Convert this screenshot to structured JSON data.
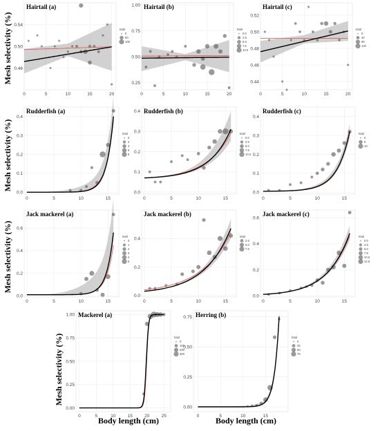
{
  "figure": {
    "ylabel": "Mesh selectivity (%)",
    "xlabel": "Body length (cm)"
  },
  "chart_data": [
    {
      "type": "scatter",
      "title": "Hairtail (a)",
      "xlim": [
        0,
        21
      ],
      "ylim": [
        0.42,
        0.58
      ],
      "xticks": [
        0,
        5,
        10,
        15,
        20
      ],
      "yticks": [
        0.46,
        0.5,
        0.54
      ],
      "legend_title": "total",
      "legend_entries": [
        "0",
        "50",
        "100"
      ],
      "legend_max": 100,
      "points": [
        [
          1,
          0.51,
          3
        ],
        [
          3,
          0.52,
          3
        ],
        [
          4,
          0.5,
          4
        ],
        [
          6,
          0.46,
          3
        ],
        [
          7,
          0.5,
          4
        ],
        [
          8,
          0.51,
          3
        ],
        [
          9,
          0.48,
          3
        ],
        [
          10,
          0.49,
          5
        ],
        [
          11,
          0.5,
          5
        ],
        [
          12,
          0.5,
          12
        ],
        [
          13,
          0.49,
          20
        ],
        [
          13,
          0.575,
          45
        ],
        [
          14,
          0.49,
          50
        ],
        [
          15,
          0.47,
          35
        ],
        [
          15,
          0.5,
          15
        ],
        [
          16,
          0.5,
          10
        ],
        [
          17,
          0.49,
          12
        ],
        [
          18,
          0.52,
          5
        ],
        [
          19,
          0.54,
          5
        ],
        [
          20,
          0.43,
          5
        ]
      ],
      "fit": {
        "start": 0.472,
        "end": 0.499
      },
      "model": {
        "start": 0.494,
        "end": 0.499
      },
      "band": {
        "lower": [
          0.45,
          0.482,
          0.455
        ],
        "upper": [
          0.495,
          0.505,
          0.543
        ]
      }
    },
    {
      "type": "scatter",
      "title": "Hairtail (b)",
      "xlim": [
        0,
        21
      ],
      "ylim": [
        0.18,
        1.02
      ],
      "xticks": [
        0,
        5,
        10,
        15,
        20
      ],
      "yticks": [
        0.25,
        0.5,
        0.75,
        1.0
      ],
      "legend_title": "total",
      "legend_entries": [
        "0.0",
        "2.5",
        "5.0",
        "7.5",
        "10.0"
      ],
      "legend_max": 10,
      "points": [
        [
          1,
          0.4,
          1
        ],
        [
          2,
          0.55,
          1
        ],
        [
          3,
          0.22,
          1
        ],
        [
          4,
          0.5,
          1
        ],
        [
          6,
          0.52,
          1
        ],
        [
          7,
          0.55,
          1
        ],
        [
          8,
          0.5,
          1
        ],
        [
          10,
          0.6,
          1
        ],
        [
          12,
          0.42,
          3
        ],
        [
          13,
          0.55,
          5
        ],
        [
          14,
          0.4,
          8
        ],
        [
          14,
          0.48,
          4
        ],
        [
          15,
          0.6,
          5
        ],
        [
          16,
          0.35,
          10
        ],
        [
          17,
          0.6,
          6
        ],
        [
          18,
          0.55,
          4
        ],
        [
          19,
          0.7,
          3
        ],
        [
          20,
          0.2,
          1
        ]
      ],
      "fit": {
        "start": 0.485,
        "end": 0.495
      },
      "model": {
        "start": 0.505,
        "end": 0.51
      },
      "band": {
        "lower": [
          0.36,
          0.465,
          0.35
        ],
        "upper": [
          0.6,
          0.525,
          0.66
        ]
      }
    },
    {
      "type": "scatter",
      "title": "Hairtail (c)",
      "xlim": [
        0,
        21
      ],
      "ylim": [
        0.43,
        0.535
      ],
      "xticks": [
        0,
        5,
        10,
        15,
        20
      ],
      "yticks": [
        0.44,
        0.46,
        0.48,
        0.5,
        0.52
      ],
      "legend_title": "total",
      "legend_entries": [
        "0",
        "40",
        "80",
        "120"
      ],
      "legend_max": 120,
      "points": [
        [
          1,
          0.5,
          5
        ],
        [
          2,
          0.49,
          5
        ],
        [
          3,
          0.47,
          5
        ],
        [
          5,
          0.44,
          5
        ],
        [
          6,
          0.43,
          5
        ],
        [
          7,
          0.49,
          5
        ],
        [
          8,
          0.51,
          10
        ],
        [
          9,
          0.5,
          10
        ],
        [
          10,
          0.49,
          5
        ],
        [
          11,
          0.53,
          5
        ],
        [
          12,
          0.5,
          10
        ],
        [
          13,
          0.49,
          10
        ],
        [
          14,
          0.51,
          20
        ],
        [
          15,
          0.51,
          60
        ],
        [
          16,
          0.5,
          30
        ],
        [
          17,
          0.51,
          20
        ],
        [
          18,
          0.49,
          10
        ],
        [
          19,
          0.5,
          5
        ],
        [
          20,
          0.46,
          5
        ]
      ],
      "fit": {
        "start": 0.476,
        "end": 0.501
      },
      "model": {
        "start": 0.492,
        "end": 0.492
      },
      "band": {
        "lower": [
          0.463,
          0.486,
          0.489
        ],
        "upper": [
          0.489,
          0.496,
          0.513
        ]
      }
    },
    {
      "type": "scatter",
      "title": "Rudderfish (a)",
      "xlim": [
        -0.5,
        17
      ],
      "ylim": [
        -0.01,
        0.45
      ],
      "xticks": [
        0,
        5,
        10,
        15
      ],
      "yticks": [
        0.0,
        0.1,
        0.2,
        0.3,
        0.4
      ],
      "legend_title": "total",
      "legend_entries": [
        "0",
        "2",
        "4",
        "6",
        "8"
      ],
      "legend_max": 8,
      "points": [
        [
          8,
          0.01,
          1
        ],
        [
          10,
          0.01,
          1
        ],
        [
          11,
          0.03,
          1
        ],
        [
          12,
          0.13,
          1
        ],
        [
          13,
          0.05,
          2
        ],
        [
          14,
          0.2,
          8
        ],
        [
          15,
          0.25,
          3
        ],
        [
          16,
          0.43,
          2
        ]
      ],
      "curve": {
        "x0": 0,
        "x1": 16,
        "ymin": 0,
        "ymax": 0.4,
        "k": 0.78
      },
      "model_curve": {
        "x0": 0,
        "x1": 16,
        "ymin": 0,
        "ymax": 0.38,
        "k": 0.72
      },
      "band_pct": [
        0.08,
        0.22
      ]
    },
    {
      "type": "scatter",
      "title": "Rudderfish (b)",
      "xlim": [
        -0.5,
        17
      ],
      "ylim": [
        -0.01,
        0.42
      ],
      "xticks": [
        0,
        5,
        10,
        15
      ],
      "yticks": [
        0.0,
        0.1,
        0.2,
        0.3,
        0.4
      ],
      "legend_title": "total",
      "legend_entries": [
        "0.0",
        "2.5",
        "5.0",
        "7.5",
        "10.0"
      ],
      "legend_max": 10,
      "points": [
        [
          1,
          0.1,
          1
        ],
        [
          2,
          0.05,
          1
        ],
        [
          3,
          0.05,
          1
        ],
        [
          5,
          0.15,
          1
        ],
        [
          7,
          0.18,
          1
        ],
        [
          8,
          0.16,
          1
        ],
        [
          10,
          0.19,
          2
        ],
        [
          11,
          0.12,
          3
        ],
        [
          12,
          0.22,
          3
        ],
        [
          13,
          0.25,
          5
        ],
        [
          14,
          0.3,
          5
        ],
        [
          15,
          0.3,
          10
        ],
        [
          16,
          0.3,
          4
        ]
      ],
      "curve": {
        "x0": 0,
        "x1": 16,
        "ymin": 0.07,
        "ymax": 0.31,
        "k": 0.25
      },
      "model_curve": {
        "x0": 0,
        "x1": 16,
        "ymin": 0.07,
        "ymax": 0.29,
        "k": 0.22
      },
      "band_pct": [
        0.22,
        0.3
      ]
    },
    {
      "type": "scatter",
      "title": "Rudderfish (c)",
      "xlim": [
        -0.5,
        17
      ],
      "ylim": [
        -0.01,
        0.45
      ],
      "xticks": [
        0,
        5,
        10,
        15
      ],
      "yticks": [
        0.0,
        0.1,
        0.2,
        0.3,
        0.4
      ],
      "legend_title": "total",
      "legend_entries": [
        "0",
        "5",
        "10"
      ],
      "legend_max": 10,
      "points": [
        [
          1,
          0.01,
          1
        ],
        [
          3,
          0.01,
          1
        ],
        [
          5,
          0.04,
          1
        ],
        [
          7,
          0.05,
          1
        ],
        [
          9,
          0.08,
          1
        ],
        [
          10,
          0.1,
          2
        ],
        [
          11,
          0.12,
          3
        ],
        [
          12,
          0.15,
          3
        ],
        [
          13,
          0.2,
          5
        ],
        [
          14,
          0.22,
          4
        ],
        [
          15,
          0.26,
          3
        ],
        [
          16,
          0.32,
          3
        ]
      ],
      "curve": {
        "x0": 0,
        "x1": 16,
        "ymin": 0.005,
        "ymax": 0.32,
        "k": 0.42
      },
      "model_curve": {
        "x0": 0,
        "x1": 16,
        "ymin": 0.005,
        "ymax": 0.33,
        "k": 0.44
      },
      "band_pct": [
        0.1,
        0.1
      ]
    },
    {
      "type": "scatter",
      "title": "Jack mackerel (a)",
      "xlim": [
        -0.5,
        17
      ],
      "ylim": [
        -0.01,
        0.76
      ],
      "xticks": [
        0,
        5,
        10,
        15
      ],
      "yticks": [
        0.0,
        0.2,
        0.4,
        0.6
      ],
      "legend_title": "total",
      "legend_entries": [
        "0",
        "1",
        "2",
        "3",
        "4",
        "5"
      ],
      "legend_max": 5,
      "points": [
        [
          10,
          0.02,
          1
        ],
        [
          11,
          0.15,
          2
        ],
        [
          12,
          0.2,
          3
        ],
        [
          13,
          0.05,
          1
        ],
        [
          14,
          0.01,
          2
        ],
        [
          15,
          0.17,
          3
        ],
        [
          16,
          0.72,
          1
        ]
      ],
      "curve": {
        "x0": 0,
        "x1": 16,
        "ymin": 0.01,
        "ymax": 0.56,
        "k": 0.8
      },
      "model_curve": {
        "x0": 0,
        "x1": 16,
        "ymin": 0.01,
        "ymax": 0.45,
        "k": 0.75
      },
      "band_pct": [
        0.1,
        0.45
      ]
    },
    {
      "type": "scatter",
      "title": "Jack mackerel (b)",
      "xlim": [
        -0.5,
        17
      ],
      "ylim": [
        -0.01,
        0.6
      ],
      "xticks": [
        0,
        5,
        10,
        15
      ],
      "yticks": [
        0.0,
        0.2,
        0.4
      ],
      "legend_title": "total",
      "legend_entries": [
        "2.5",
        "5.0",
        "7.5"
      ],
      "legend_max": 7.5,
      "points": [
        [
          1,
          0.05,
          1
        ],
        [
          2,
          0.05,
          1
        ],
        [
          4,
          0.07,
          1
        ],
        [
          6,
          0.08,
          1
        ],
        [
          7,
          0.15,
          2
        ],
        [
          9,
          0.17,
          2
        ],
        [
          10,
          0.2,
          3
        ],
        [
          11,
          0.53,
          2
        ],
        [
          12,
          0.3,
          4
        ],
        [
          13,
          0.27,
          3
        ],
        [
          14,
          0.4,
          5
        ],
        [
          15,
          0.33,
          4
        ],
        [
          16,
          0.42,
          3
        ]
      ],
      "curve": {
        "x0": 0,
        "x1": 16,
        "ymin": 0.03,
        "ymax": 0.47,
        "k": 0.2
      },
      "model_curve": {
        "x0": 0,
        "x1": 16,
        "ymin": 0.04,
        "ymax": 0.44,
        "k": 0.18
      },
      "band_pct": [
        0.15,
        0.12
      ]
    },
    {
      "type": "scatter",
      "title": "Jack mackerel (c)",
      "xlim": [
        -0.5,
        17
      ],
      "ylim": [
        -0.01,
        0.66
      ],
      "xticks": [
        0,
        5,
        10,
        15
      ],
      "yticks": [
        0.0,
        0.2,
        0.4,
        0.6
      ],
      "legend_title": "total",
      "legend_entries": [
        "0.0",
        "2.5",
        "5.0",
        "7.5",
        "10.0",
        "12.5"
      ],
      "legend_max": 12.5,
      "points": [
        [
          1,
          0.01,
          1
        ],
        [
          3,
          0.02,
          1
        ],
        [
          5,
          0.04,
          1
        ],
        [
          7,
          0.06,
          1
        ],
        [
          8,
          0.07,
          1
        ],
        [
          9,
          0.08,
          2
        ],
        [
          10,
          0.12,
          3
        ],
        [
          11,
          0.1,
          4
        ],
        [
          12,
          0.2,
          5
        ],
        [
          13,
          0.22,
          6
        ],
        [
          14,
          0.33,
          6
        ],
        [
          15,
          0.23,
          5
        ],
        [
          16,
          0.64,
          3
        ]
      ],
      "curve": {
        "x0": 0,
        "x1": 16,
        "ymin": 0.01,
        "ymax": 0.48,
        "k": 0.24
      },
      "model_curve": {
        "x0": 0,
        "x1": 16,
        "ymin": 0.01,
        "ymax": 0.46,
        "k": 0.23
      },
      "band_pct": [
        0.1,
        0.1
      ]
    },
    {
      "type": "scatter",
      "title": "Mackerel (a)",
      "xlim": [
        -1,
        27
      ],
      "ylim": [
        -0.04,
        1.04
      ],
      "xticks": [
        0,
        5,
        10,
        15,
        20,
        25
      ],
      "yticks": [
        0.0,
        0.25,
        0.5,
        0.75,
        1.0
      ],
      "legend_title": "total",
      "legend_entries": [
        "0",
        "100",
        "200",
        "300"
      ],
      "legend_max": 300,
      "points": [
        [
          19,
          0.15,
          30
        ],
        [
          20,
          0.9,
          120
        ],
        [
          21,
          0.98,
          250
        ],
        [
          22,
          1.0,
          300
        ],
        [
          23,
          1.0,
          200
        ],
        [
          24,
          1.0,
          150
        ],
        [
          25,
          1.0,
          50
        ]
      ],
      "logistic": {
        "x0": 0,
        "x1": 25,
        "mid": 19.8,
        "slope": 3.0,
        "max": 1.0
      },
      "model_logistic": {
        "x0": 0,
        "x1": 25,
        "mid": 19.9,
        "slope": 3.2,
        "max": 1.0
      }
    },
    {
      "type": "scatter",
      "title": "Herring (b)",
      "xlim": [
        -1,
        20
      ],
      "ylim": [
        -0.04,
        0.8
      ],
      "xticks": [
        0,
        5,
        10,
        15
      ],
      "yticks": [
        0.0,
        0.25,
        0.5,
        0.75
      ],
      "legend_title": "total",
      "legend_entries": [
        "0",
        "25",
        "50",
        "75"
      ],
      "legend_max": 75,
      "points": [
        [
          11,
          0.005,
          2
        ],
        [
          12,
          0.01,
          3
        ],
        [
          13,
          0.015,
          5
        ],
        [
          14,
          0.03,
          10
        ],
        [
          15,
          0.06,
          40
        ],
        [
          16,
          0.16,
          60
        ],
        [
          17,
          0.58,
          20
        ],
        [
          18,
          0.73,
          5
        ]
      ],
      "curve": {
        "x0": 0,
        "x1": 18,
        "ymin": 0,
        "ymax": 0.75,
        "k": 0.95
      },
      "model_curve": {
        "x0": 0,
        "x1": 18,
        "ymin": 0,
        "ymax": 0.76,
        "k": 0.96
      },
      "band_pct": [
        0.04,
        0.04
      ]
    }
  ]
}
